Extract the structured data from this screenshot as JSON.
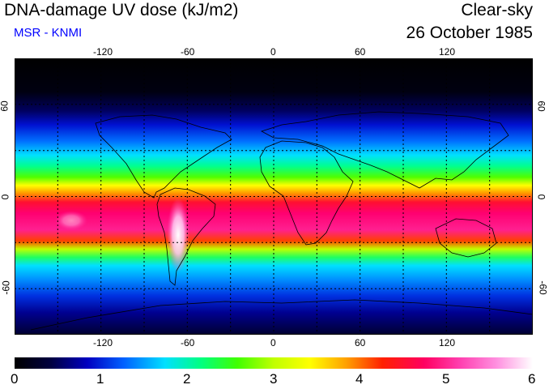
{
  "header": {
    "title": "DNA-damage UV dose (kJ/m2)",
    "source": "MSR - KNMI",
    "condition": "Clear-sky",
    "date": "26 October 1985"
  },
  "colors": {
    "source_text": "#0000ff",
    "grid": "#000000",
    "coast": "#000000"
  },
  "map": {
    "longitude_ticks": [
      "-120",
      "-60",
      "0",
      "60",
      "120"
    ],
    "longitude_values": [
      -120,
      -60,
      0,
      60,
      120
    ],
    "latitude_ticks": [
      "60",
      "0",
      "-60"
    ],
    "latitude_values": [
      60,
      0,
      -60
    ],
    "grid_lon": [
      -150,
      -120,
      -90,
      -60,
      -30,
      0,
      30,
      60,
      90,
      120,
      150
    ],
    "grid_lat": [
      60,
      30,
      0,
      -30,
      -60
    ]
  },
  "colorbar": {
    "min": 0,
    "max": 6,
    "labels": [
      "0",
      "1",
      "2",
      "3",
      "4",
      "5",
      "6"
    ],
    "stops": [
      "#000000",
      "#000040",
      "#0000c0",
      "#0060ff",
      "#00e0ff",
      "#00ff80",
      "#40ff00",
      "#c0ff00",
      "#ffff00",
      "#ffa000",
      "#ff2000",
      "#ff0060",
      "#ff40b0",
      "#ff90e0",
      "#ffffff"
    ]
  }
}
